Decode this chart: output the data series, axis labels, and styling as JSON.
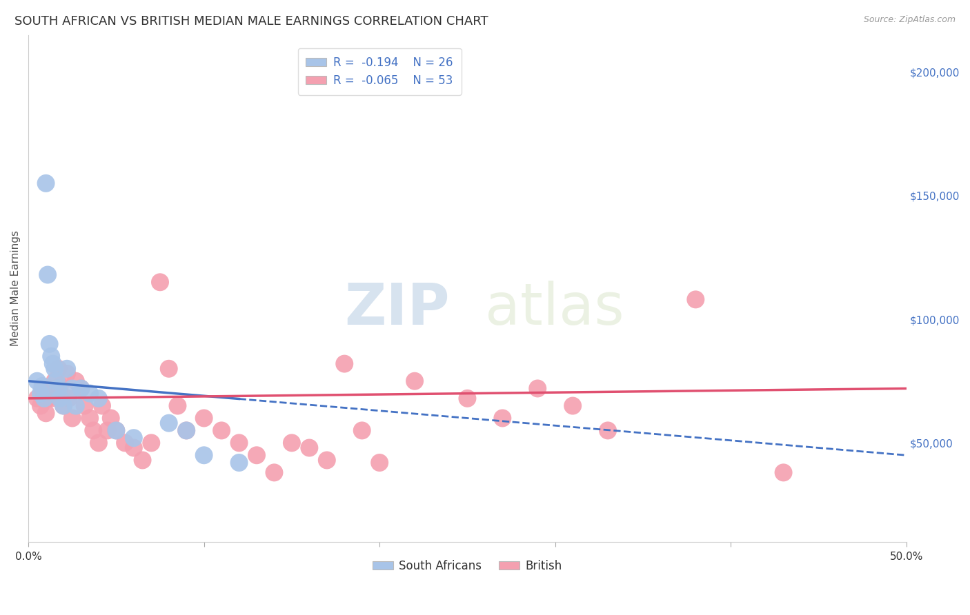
{
  "title": "SOUTH AFRICAN VS BRITISH MEDIAN MALE EARNINGS CORRELATION CHART",
  "source": "Source: ZipAtlas.com",
  "ylabel": "Median Male Earnings",
  "xlim": [
    0.0,
    0.5
  ],
  "ylim": [
    10000,
    215000
  ],
  "xticks": [
    0.0,
    0.1,
    0.2,
    0.3,
    0.4,
    0.5
  ],
  "xticklabels": [
    "0.0%",
    "",
    "",
    "",
    "",
    "50.0%"
  ],
  "yticks_right": [
    50000,
    100000,
    150000,
    200000
  ],
  "ytick_labels_right": [
    "$50,000",
    "$100,000",
    "$150,000",
    "$200,000"
  ],
  "r_sa": -0.194,
  "n_sa": 26,
  "r_br": -0.065,
  "n_br": 53,
  "legend_text_color": "#4472c4",
  "sa_color": "#a8c4e8",
  "br_color": "#f4a0b0",
  "sa_line_color": "#4472c4",
  "br_line_color": "#e05070",
  "sa_scatter": [
    [
      0.005,
      75000
    ],
    [
      0.007,
      70000
    ],
    [
      0.008,
      73000
    ],
    [
      0.009,
      68000
    ],
    [
      0.01,
      155000
    ],
    [
      0.011,
      118000
    ],
    [
      0.012,
      90000
    ],
    [
      0.013,
      85000
    ],
    [
      0.014,
      82000
    ],
    [
      0.015,
      80000
    ],
    [
      0.016,
      75000
    ],
    [
      0.017,
      72000
    ],
    [
      0.018,
      68000
    ],
    [
      0.02,
      65000
    ],
    [
      0.022,
      80000
    ],
    [
      0.025,
      72000
    ],
    [
      0.027,
      65000
    ],
    [
      0.03,
      72000
    ],
    [
      0.035,
      70000
    ],
    [
      0.04,
      68000
    ],
    [
      0.05,
      55000
    ],
    [
      0.06,
      52000
    ],
    [
      0.08,
      58000
    ],
    [
      0.09,
      55000
    ],
    [
      0.1,
      45000
    ],
    [
      0.12,
      42000
    ]
  ],
  "br_scatter": [
    [
      0.005,
      68000
    ],
    [
      0.007,
      65000
    ],
    [
      0.008,
      72000
    ],
    [
      0.009,
      70000
    ],
    [
      0.01,
      62000
    ],
    [
      0.011,
      68000
    ],
    [
      0.012,
      72000
    ],
    [
      0.013,
      68000
    ],
    [
      0.015,
      75000
    ],
    [
      0.016,
      70000
    ],
    [
      0.017,
      80000
    ],
    [
      0.018,
      73000
    ],
    [
      0.02,
      65000
    ],
    [
      0.022,
      78000
    ],
    [
      0.023,
      68000
    ],
    [
      0.025,
      60000
    ],
    [
      0.027,
      75000
    ],
    [
      0.03,
      72000
    ],
    [
      0.032,
      65000
    ],
    [
      0.035,
      60000
    ],
    [
      0.037,
      55000
    ],
    [
      0.04,
      50000
    ],
    [
      0.042,
      65000
    ],
    [
      0.045,
      55000
    ],
    [
      0.047,
      60000
    ],
    [
      0.05,
      55000
    ],
    [
      0.055,
      50000
    ],
    [
      0.06,
      48000
    ],
    [
      0.065,
      43000
    ],
    [
      0.07,
      50000
    ],
    [
      0.075,
      115000
    ],
    [
      0.08,
      80000
    ],
    [
      0.085,
      65000
    ],
    [
      0.09,
      55000
    ],
    [
      0.1,
      60000
    ],
    [
      0.11,
      55000
    ],
    [
      0.12,
      50000
    ],
    [
      0.13,
      45000
    ],
    [
      0.14,
      38000
    ],
    [
      0.15,
      50000
    ],
    [
      0.16,
      48000
    ],
    [
      0.17,
      43000
    ],
    [
      0.18,
      82000
    ],
    [
      0.19,
      55000
    ],
    [
      0.2,
      42000
    ],
    [
      0.22,
      75000
    ],
    [
      0.25,
      68000
    ],
    [
      0.27,
      60000
    ],
    [
      0.29,
      72000
    ],
    [
      0.31,
      65000
    ],
    [
      0.33,
      55000
    ],
    [
      0.38,
      108000
    ],
    [
      0.43,
      38000
    ]
  ],
  "watermark_zip": "ZIP",
  "watermark_atlas": "atlas",
  "background_color": "#ffffff",
  "grid_color": "#cccccc",
  "title_fontsize": 13,
  "axis_label_fontsize": 11,
  "tick_fontsize": 11,
  "right_tick_color": "#4472c4"
}
